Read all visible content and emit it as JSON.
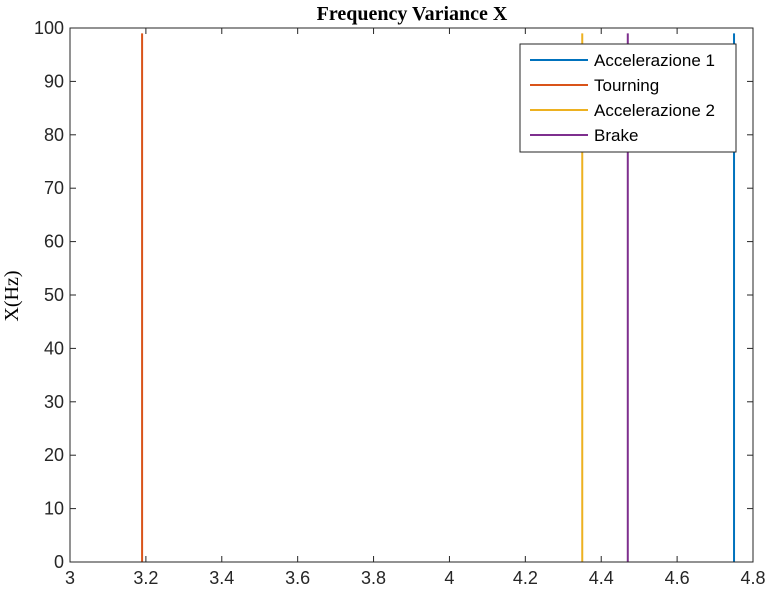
{
  "chart_data": {
    "type": "line",
    "title": "Frequency Variance X",
    "xlabel": "",
    "ylabel": "X(Hz)",
    "xlim": [
      3,
      4.8
    ],
    "ylim": [
      0,
      100
    ],
    "xticks": [
      "3",
      "3.2",
      "3.4",
      "3.6",
      "3.8",
      "4",
      "4.2",
      "4.4",
      "4.6",
      "4.8"
    ],
    "yticks": [
      "0",
      "10",
      "20",
      "30",
      "40",
      "50",
      "60",
      "70",
      "80",
      "90",
      "100"
    ],
    "grid": false,
    "legend_position": "top-right",
    "series": [
      {
        "name": "Accelerazione 1",
        "color": "#0072BD",
        "x": [
          4.75,
          4.75
        ],
        "y": [
          0,
          99
        ]
      },
      {
        "name": "Tourning",
        "color": "#D95319",
        "x": [
          3.19,
          3.19
        ],
        "y": [
          0,
          99
        ]
      },
      {
        "name": "Accelerazione 2",
        "color": "#EDB120",
        "x": [
          4.35,
          4.35
        ],
        "y": [
          0,
          99
        ]
      },
      {
        "name": "Brake",
        "color": "#7E2F8E",
        "x": [
          4.47,
          4.47
        ],
        "y": [
          0,
          99
        ]
      }
    ]
  }
}
